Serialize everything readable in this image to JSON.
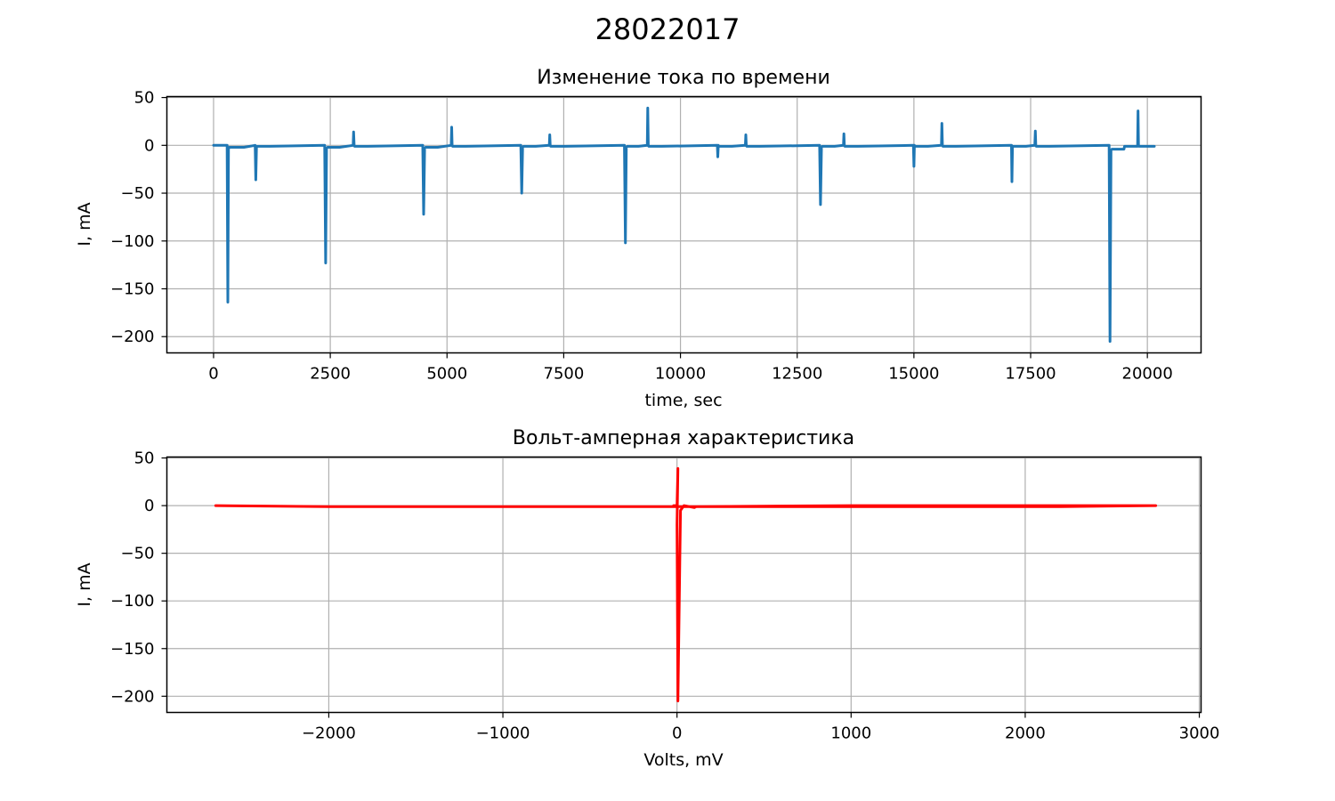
{
  "figure": {
    "title": "28022017"
  },
  "chart_data": [
    {
      "type": "line",
      "title": "Изменение тока по времени",
      "xlabel": "time, sec",
      "ylabel": "I, mA",
      "xlim": [
        -1000,
        21150
      ],
      "ylim": [
        -217,
        51
      ],
      "xticks": [
        0,
        2500,
        5000,
        7500,
        10000,
        12500,
        15000,
        17500,
        20000
      ],
      "xtick_labels": [
        "0",
        "2500",
        "5000",
        "7500",
        "10000",
        "12500",
        "15000",
        "17500",
        "20000"
      ],
      "yticks": [
        50,
        0,
        -50,
        -100,
        -150,
        -200
      ],
      "ytick_labels": [
        "50",
        "0",
        "−50",
        "−100",
        "−150",
        "−200"
      ],
      "grid": true,
      "color": "#1f77b4",
      "series": [
        {
          "x": [
            0,
            290,
            305,
            320,
            335,
            350,
            650,
            890,
            905,
            920,
            935,
            1200,
            2380,
            2400,
            2420,
            2440,
            2460,
            2700,
            2990,
            3000,
            3010,
            3020,
            3030,
            3300,
            4480,
            4500,
            4520,
            4540,
            4560,
            4800,
            5090,
            5100,
            5110,
            5120,
            5130,
            5400,
            6580,
            6600,
            6620,
            6640,
            6660,
            6900,
            7190,
            7200,
            7210,
            7220,
            7230,
            7500,
            8800,
            8820,
            8840,
            8860,
            8880,
            9100,
            9290,
            9300,
            9310,
            9320,
            9330,
            9600,
            10790,
            10800,
            10810,
            10820,
            10830,
            11100,
            11390,
            11400,
            11410,
            11420,
            11430,
            11700,
            12980,
            13000,
            13020,
            13040,
            13060,
            13300,
            13490,
            13500,
            13510,
            13520,
            13530,
            13800,
            14990,
            15000,
            15010,
            15020,
            15030,
            15300,
            15590,
            15600,
            15610,
            15620,
            15630,
            15900,
            17090,
            17100,
            17110,
            17120,
            17130,
            17400,
            17590,
            17600,
            17610,
            17620,
            17630,
            17900,
            19180,
            19200,
            19220,
            19240,
            19260,
            19500,
            19510,
            19790,
            19800,
            19810,
            19820,
            19830,
            20150
          ],
          "y": [
            0,
            0,
            -164,
            -4,
            -2,
            -2,
            -2,
            0,
            -36,
            -1,
            -1,
            -1,
            0,
            -123,
            -3,
            -2,
            -2,
            -2,
            0,
            14,
            0,
            -1,
            -1,
            -1,
            0,
            -72,
            -3,
            -2,
            -2,
            -2,
            0,
            19,
            0,
            -1,
            -1,
            -1,
            0,
            -50,
            -2,
            -1,
            -1,
            -1,
            0,
            11,
            0,
            -1,
            -1,
            -1,
            0,
            -102,
            -2,
            -1,
            -1,
            -1,
            0,
            39,
            0,
            -1,
            -1,
            -1,
            0,
            -12,
            0,
            -1,
            -1,
            -1,
            0,
            11,
            0,
            -1,
            -1,
            -1,
            0,
            -62,
            -2,
            -1,
            -1,
            -1,
            0,
            12,
            0,
            -1,
            -1,
            -1,
            0,
            -22,
            0,
            -1,
            -1,
            -1,
            0,
            23,
            0,
            -1,
            -1,
            -1,
            0,
            -38,
            -2,
            -1,
            -1,
            -1,
            0,
            15,
            0,
            -1,
            -1,
            -1,
            0,
            -205,
            -5,
            -4,
            -4,
            -4,
            -1,
            -1,
            36,
            0,
            -1,
            -1,
            -1
          ]
        }
      ]
    },
    {
      "type": "line",
      "title": "Вольт-амперная характеристика",
      "xlabel": "Volts, mV",
      "ylabel": "I, mA",
      "xlim": [
        -2930,
        3010
      ],
      "ylim": [
        -217,
        51
      ],
      "xticks": [
        -2000,
        -1000,
        0,
        1000,
        2000,
        3000
      ],
      "xtick_labels": [
        "−2000",
        "−1000",
        "0",
        "1000",
        "2000",
        "3000"
      ],
      "yticks": [
        50,
        0,
        -50,
        -100,
        -150,
        -200
      ],
      "ytick_labels": [
        "50",
        "0",
        "−50",
        "−100",
        "−150",
        "−200"
      ],
      "grid": true,
      "color": "#ff0000",
      "series": [
        {
          "x": [
            -2650,
            -2000,
            -1000,
            -100,
            -20,
            0,
            5,
            0,
            5,
            20,
            40,
            100,
            110,
            500,
            1500,
            2200,
            2750,
            2000,
            1000,
            110,
            0,
            0,
            -20,
            0
          ],
          "y": [
            0,
            -1,
            -1,
            -1,
            -1,
            -1,
            39,
            -20,
            -205,
            -5,
            0,
            -2,
            -1,
            -1,
            -1,
            -1,
            0,
            0,
            0,
            -1,
            -1,
            -1,
            0,
            0
          ]
        }
      ]
    }
  ]
}
